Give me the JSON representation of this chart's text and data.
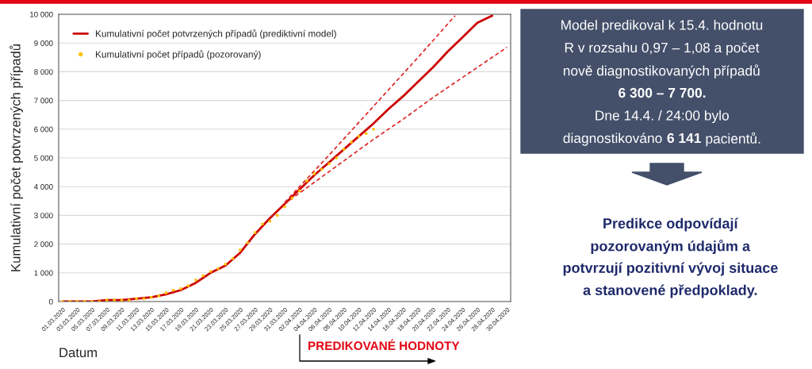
{
  "chart_data": {
    "type": "line",
    "ylabel": "Kumulativní počet potvrzených případů",
    "xlabel": "Datum",
    "xlim": [
      "2020-02-29T12:00",
      "2020-04-30T12:00"
    ],
    "xticks": [
      {
        "value": "2020-03-01",
        "label": "01.03.2020"
      },
      {
        "value": "2020-03-03",
        "label": "03.03.2020"
      },
      {
        "value": "2020-03-05",
        "label": "05.03.2020"
      },
      {
        "value": "2020-03-07",
        "label": "07.03.2020"
      },
      {
        "value": "2020-03-09",
        "label": "09.03.2020"
      },
      {
        "value": "2020-03-11",
        "label": "11.03.2020"
      },
      {
        "value": "2020-03-13",
        "label": "13.03.2020"
      },
      {
        "value": "2020-03-15",
        "label": "15.03.2020"
      },
      {
        "value": "2020-03-17",
        "label": "17.03.2020"
      },
      {
        "value": "2020-03-19",
        "label": "19.03.2020"
      },
      {
        "value": "2020-03-21",
        "label": "21.03.2020"
      },
      {
        "value": "2020-03-23",
        "label": "23.03.2020"
      },
      {
        "value": "2020-03-25",
        "label": "25.03.2020"
      },
      {
        "value": "2020-03-27",
        "label": "27.03.2020"
      },
      {
        "value": "2020-03-29",
        "label": "29.03.2020"
      },
      {
        "value": "2020-03-31",
        "label": "31.03.2020"
      },
      {
        "value": "2020-04-02",
        "label": "02.04.2020"
      },
      {
        "value": "2020-04-04",
        "label": "04.04.2020"
      },
      {
        "value": "2020-04-06",
        "label": "06.04.2020"
      },
      {
        "value": "2020-04-08",
        "label": "08.04.2020"
      },
      {
        "value": "2020-04-10",
        "label": "10.04.2020"
      },
      {
        "value": "2020-04-12",
        "label": "12.04.2020"
      },
      {
        "value": "2020-04-14",
        "label": "14.04.2020"
      },
      {
        "value": "2020-04-16",
        "label": "16.04.2020"
      },
      {
        "value": "2020-04-18",
        "label": "18.04.2020"
      },
      {
        "value": "2020-04-20",
        "label": "20.04.2020"
      },
      {
        "value": "2020-04-22",
        "label": "22.04.2020"
      },
      {
        "value": "2020-04-24",
        "label": "24.04.2020"
      },
      {
        "value": "2020-04-26",
        "label": "26.04.2020"
      },
      {
        "value": "2020-04-28",
        "label": "28.04.2020"
      },
      {
        "value": "2020-04-30",
        "label": "30.04.2020"
      }
    ],
    "ylim": [
      0,
      10000
    ],
    "yticks": [
      0,
      {
        "value": 1000,
        "label": "1 000"
      },
      {
        "value": 2000,
        "label": "2 000"
      },
      {
        "value": 3000,
        "label": "3 000"
      },
      {
        "value": 4000,
        "label": "4 000"
      },
      {
        "value": 5000,
        "label": "5 000"
      },
      {
        "value": 6000,
        "label": "6 000"
      },
      {
        "value": 7000,
        "label": "7 000"
      },
      {
        "value": 8000,
        "label": "8 000"
      },
      {
        "value": 9000,
        "label": "9 000"
      },
      {
        "value": 10000,
        "label": "10 000"
      }
    ],
    "grid": "y",
    "legend": "top left",
    "series": [
      {
        "name": "Kumulativní počet potvrzených případů (prediktivní model)",
        "line_style": "solid",
        "color": "#cc0000",
        "x": [
          "2020-03-01",
          "2020-03-03",
          "2020-03-05",
          "2020-03-07",
          "2020-03-09",
          "2020-03-11",
          "2020-03-13",
          "2020-03-15",
          "2020-03-17",
          "2020-03-19",
          "2020-03-21",
          "2020-03-23",
          "2020-03-25",
          "2020-03-27",
          "2020-03-29",
          "2020-03-31",
          "2020-04-02",
          "2020-04-04",
          "2020-04-06",
          "2020-04-08",
          "2020-04-10",
          "2020-04-12",
          "2020-04-14",
          "2020-04-16",
          "2020-04-18",
          "2020-04-20",
          "2020-04-22",
          "2020-04-24",
          "2020-04-26",
          "2020-04-28"
        ],
        "values": [
          0,
          0,
          0,
          50,
          50,
          100,
          150,
          250,
          400,
          650,
          1000,
          1250,
          1700,
          2350,
          2900,
          3400,
          3900,
          4400,
          4850,
          5300,
          5750,
          6200,
          6700,
          7150,
          7650,
          8150,
          8700,
          9200,
          9700,
          9950
        ]
      },
      {
        "line_style": "dashed",
        "color": "#dd2222",
        "x": [
          "2020-03-31",
          "2020-04-06",
          "2020-04-12",
          "2020-04-18",
          "2020-04-23"
        ],
        "values": [
          3450,
          5100,
          6800,
          8500,
          9950
        ]
      },
      {
        "line_style": "dashed",
        "color": "#dd2222",
        "x": [
          "2020-03-31",
          "2020-04-04",
          "2020-04-08",
          "2020-04-12",
          "2020-04-16",
          "2020-04-20",
          "2020-04-24",
          "2020-04-28",
          "2020-04-30"
        ],
        "values": [
          3400,
          4150,
          4900,
          5650,
          6350,
          7100,
          7800,
          8500,
          8850
        ]
      },
      {
        "name": "Kumulativní počet případů (pozorovaný)",
        "type": "scatter",
        "marker": "circle",
        "color": "#ffc000",
        "x": [
          "2020-03-01",
          "2020-03-02",
          "2020-03-03",
          "2020-03-04",
          "2020-03-05",
          "2020-03-06",
          "2020-03-07",
          "2020-03-08",
          "2020-03-09",
          "2020-03-10",
          "2020-03-11",
          "2020-03-12",
          "2020-03-13",
          "2020-03-14",
          "2020-03-15",
          "2020-03-16",
          "2020-03-17",
          "2020-03-18",
          "2020-03-19",
          "2020-03-20",
          "2020-03-21",
          "2020-03-22",
          "2020-03-23",
          "2020-03-24",
          "2020-03-25",
          "2020-03-26",
          "2020-03-27",
          "2020-03-28",
          "2020-03-29",
          "2020-03-30",
          "2020-03-31",
          "2020-04-01",
          "2020-04-02",
          "2020-04-03",
          "2020-04-04",
          "2020-04-05",
          "2020-04-06",
          "2020-04-07",
          "2020-04-08",
          "2020-04-09",
          "2020-04-10",
          "2020-04-11",
          "2020-04-12"
        ],
        "values": [
          0,
          0,
          0,
          0,
          0,
          0,
          50,
          50,
          50,
          50,
          100,
          100,
          150,
          200,
          300,
          400,
          450,
          550,
          750,
          900,
          1050,
          1150,
          1300,
          1500,
          1800,
          2050,
          2400,
          2700,
          2800,
          3000,
          3300,
          3600,
          3850,
          4200,
          4450,
          4600,
          4800,
          5000,
          5300,
          5550,
          5750,
          5850,
          6000
        ]
      }
    ],
    "annotations": [
      "Model predikoval k 15.4. hodnotu",
      "R v rozsahu 0,97 – 1,08 a počet",
      "nově diagnostikovaných případů",
      "6 300 – 7 700.",
      "Dne 14.4. / 24:00 bylo",
      "diagnostikováno",
      "6 141",
      "pacientů.",
      "Predikce odpovídají",
      "pozorovaným údajům a",
      "potvrzují pozitivní vývoj situace",
      "a stanovené předpoklady.",
      "PREDIKOVANÉ HODNOTY"
    ]
  }
}
